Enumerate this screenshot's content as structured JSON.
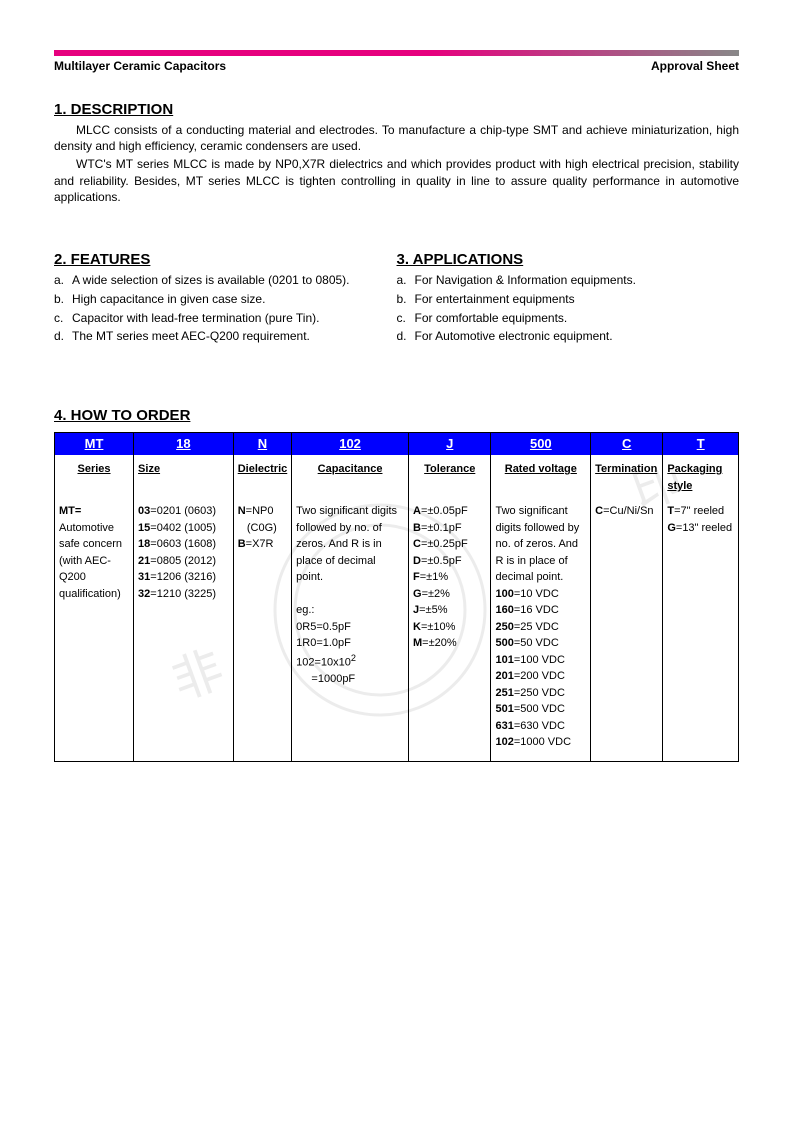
{
  "colors": {
    "stripe_grad_from": "#e6007e",
    "stripe_grad_to": "#888888",
    "table_header_bg": "#0000ff",
    "table_header_text": "#ffffff",
    "watermark": "#9a9a9a"
  },
  "header": {
    "left": "Multilayer Ceramic Capacitors",
    "right": "Approval Sheet"
  },
  "description": {
    "heading": "1. DESCRIPTION",
    "para1": "MLCC consists of a conducting material and electrodes. To manufacture a chip-type SMT and achieve miniaturization, high density and high efficiency, ceramic condensers are used.",
    "para2": "WTC's MT series MLCC is made by NP0,X7R dielectrics and which provides product with high electrical precision, stability and reliability. Besides, MT series MLCC is tighten controlling in quality in line to assure quality performance in automotive applications."
  },
  "features": {
    "heading": "2. FEATURES",
    "items": [
      {
        "m": "a.",
        "t": "A wide selection of sizes is available (0201 to 0805)."
      },
      {
        "m": "b.",
        "t": "High capacitance in given case size."
      },
      {
        "m": "c.",
        "t": "Capacitor with lead-free termination (pure Tin)."
      },
      {
        "m": "d.",
        "t": "The MT series meet AEC-Q200 requirement."
      }
    ]
  },
  "applications": {
    "heading": "3. APPLICATIONS",
    "items": [
      {
        "m": "a.",
        "t": "For Navigation & Information equipments."
      },
      {
        "m": "b.",
        "t": "For entertainment equipments"
      },
      {
        "m": "c.",
        "t": "For comfortable equipments."
      },
      {
        "m": "d.",
        "t": "For Automotive electronic equipment."
      }
    ]
  },
  "how_to_order": {
    "heading": "4. HOW TO ORDER",
    "header_codes": [
      "MT",
      "18",
      "N",
      "102",
      "J",
      "500",
      "C",
      "T"
    ],
    "subheads": [
      "Series",
      "Size",
      "Dielectric",
      "Capacitance",
      "Tolerance",
      "Rated voltage",
      "Termination",
      "Packaging style"
    ],
    "cols": {
      "series": "<b>MT=</b> Automotive safe concern (with AEC-Q200 qualification)",
      "size": "<b>03</b>=0201 (0603)<br><b>15</b>=0402 (1005)<br><b>18</b>=0603 (1608)<br><b>21</b>=0805 (2012)<br><b>31</b>=1206 (3216)<br><b>32</b>=1210 (3225)",
      "dielectric": "<b>N</b>=NP0<br>&nbsp;&nbsp;&nbsp;(C0G)<br><b>B</b>=X7R",
      "capacitance": "Two significant digits followed by no. of zeros. And R is in place of decimal point.<br><br>eg.:<br>0R5=0.5pF<br>1R0=1.0pF<br>102=10x10<sup>2</sup><br>&nbsp;&nbsp;&nbsp;&nbsp;&nbsp;=1000pF",
      "tolerance": "<b>A</b>=±0.05pF<br><b>B</b>=±0.1pF<br><b>C</b>=±0.25pF<br><b>D</b>=±0.5pF<br><b>F</b>=±1%<br><b>G</b>=±2%<br><b>J</b>=±5%<br><b>K</b>=±10%<br><b>M</b>=±20%",
      "voltage": "Two significant digits followed by no. of zeros. And R is in place of decimal point.<br><b>100</b>=10 VDC<br><b>160</b>=16 VDC<br><b>250</b>=25 VDC<br><b>500</b>=50 VDC<br><b>101</b>=100 VDC<br><b>201</b>=200 VDC<br><b>251</b>=250 VDC<br><b>501</b>=500 VDC<br><b>631</b>=630 VDC<br><b>102</b>=1000 VDC",
      "termination": "<b>C</b>=Cu/Ni/Sn",
      "packaging": "<b>T</b>=7\" reeled<br><b>G</b>=13\" reeled"
    }
  }
}
